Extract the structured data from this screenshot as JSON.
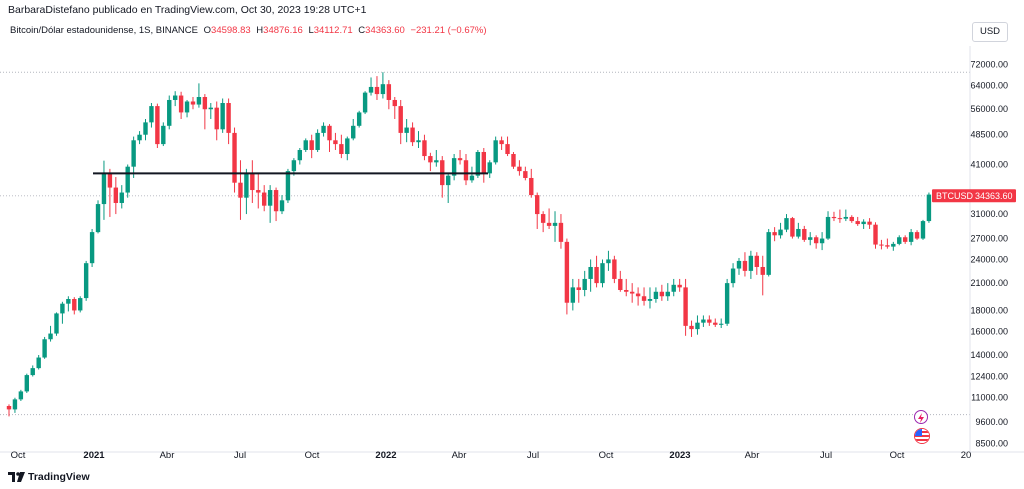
{
  "header": {
    "published": "BarbaraDistefano publicado en TradingView.com, Oct 30, 2023 19:28 UTC+1"
  },
  "legend": {
    "symbol": "Bitcoin/Dólar estadounidense, 1S, BINANCE",
    "o_label": "O",
    "o_value": "34598.83",
    "h_label": "H",
    "h_value": "34876.16",
    "l_label": "L",
    "l_value": "34112.71",
    "c_label": "C",
    "c_value": "34363.60",
    "change": "−231.21 (−0.67%)"
  },
  "currency_button": {
    "label": "USD"
  },
  "price_tag": {
    "ticker": "BTCUSD",
    "price": "34363.60"
  },
  "footer": {
    "brand": "TradingView"
  },
  "colors": {
    "up": "#089981",
    "down": "#f23645",
    "grid": "#e0e3eb",
    "text": "#131722"
  },
  "icons": [
    "lightning-event-icon",
    "us-flag-event-icon"
  ],
  "chart_data": {
    "type": "candlestick",
    "symbol": "BTCUSD",
    "interval": "1W",
    "y_scale": "log",
    "ylim": [
      8100,
      80000
    ],
    "y_ticks": [
      72000,
      64000,
      56000,
      48500,
      41000,
      31000,
      27000,
      24000,
      21000,
      18000,
      16000,
      14000,
      12400,
      11000,
      9600,
      8500
    ],
    "x_labels": [
      "Oct",
      "2021",
      "Abr",
      "Jul",
      "Oct",
      "2022",
      "Abr",
      "Jul",
      "Oct",
      "2023",
      "Abr",
      "Jul",
      "Oct",
      "20"
    ],
    "dotted_level_top": 69000,
    "dotted_level_bottom": 10000,
    "current_price": 34363.6,
    "annotations": [
      {
        "type": "horizontal_segment",
        "price": 39000,
        "from": "2020-12-14",
        "to": "2022-04-11"
      }
    ],
    "candles": [
      [
        10500,
        10600,
        9900,
        10300
      ],
      [
        10300,
        11000,
        10100,
        10900
      ],
      [
        10900,
        11500,
        10800,
        11400
      ],
      [
        11400,
        12600,
        11300,
        12500
      ],
      [
        12500,
        13200,
        12400,
        13000
      ],
      [
        13000,
        14000,
        12900,
        13800
      ],
      [
        13800,
        15500,
        13700,
        15300
      ],
      [
        15300,
        16500,
        15100,
        15800
      ],
      [
        15800,
        17800,
        15600,
        17700
      ],
      [
        17700,
        18900,
        16700,
        18700
      ],
      [
        18700,
        19500,
        17900,
        19200
      ],
      [
        19200,
        19400,
        17600,
        18000
      ],
      [
        18000,
        19500,
        17800,
        19300
      ],
      [
        19300,
        23800,
        19000,
        23500
      ],
      [
        23500,
        28500,
        23000,
        28000
      ],
      [
        28000,
        33500,
        27800,
        32800
      ],
      [
        32800,
        41900,
        30000,
        39000
      ],
      [
        39000,
        40000,
        30500,
        36000
      ],
      [
        36000,
        38200,
        31000,
        33000
      ],
      [
        33000,
        36500,
        32000,
        35000
      ],
      [
        35000,
        41000,
        34000,
        40500
      ],
      [
        40500,
        48000,
        38000,
        47000
      ],
      [
        47000,
        49500,
        46000,
        48500
      ],
      [
        48500,
        53000,
        47000,
        52000
      ],
      [
        52000,
        58000,
        50500,
        57000
      ],
      [
        57000,
        57800,
        45000,
        46000
      ],
      [
        46000,
        52000,
        45500,
        51000
      ],
      [
        51000,
        60500,
        50000,
        59000
      ],
      [
        59000,
        62000,
        57000,
        60500
      ],
      [
        60500,
        61800,
        53000,
        55000
      ],
      [
        55000,
        59000,
        53500,
        58500
      ],
      [
        58500,
        60000,
        56000,
        57500
      ],
      [
        57500,
        64800,
        56500,
        60000
      ],
      [
        60000,
        61000,
        50000,
        56000
      ],
      [
        56000,
        58000,
        53000,
        56500
      ],
      [
        56500,
        58500,
        47000,
        50000
      ],
      [
        50000,
        59500,
        49000,
        58000
      ],
      [
        58000,
        59500,
        46000,
        49000
      ],
      [
        49000,
        50500,
        35000,
        37000
      ],
      [
        37000,
        42000,
        30000,
        34000
      ],
      [
        34000,
        40000,
        31000,
        39000
      ],
      [
        39000,
        42000,
        33000,
        35500
      ],
      [
        35500,
        39000,
        32000,
        35000
      ],
      [
        35000,
        36500,
        31500,
        32500
      ],
      [
        32500,
        36500,
        29500,
        35500
      ],
      [
        35500,
        36000,
        29800,
        31500
      ],
      [
        31500,
        34500,
        31000,
        33500
      ],
      [
        33500,
        40000,
        33000,
        39500
      ],
      [
        39500,
        42500,
        38500,
        42000
      ],
      [
        42000,
        45000,
        41000,
        44500
      ],
      [
        44500,
        47500,
        44000,
        47000
      ],
      [
        47000,
        48500,
        42500,
        44500
      ],
      [
        44500,
        50000,
        44000,
        49000
      ],
      [
        49000,
        52000,
        48000,
        51000
      ],
      [
        51000,
        51500,
        44000,
        47000
      ],
      [
        47000,
        49000,
        44500,
        46000
      ],
      [
        46000,
        48500,
        42500,
        43500
      ],
      [
        43500,
        48000,
        42000,
        47500
      ],
      [
        47500,
        53000,
        47000,
        51000
      ],
      [
        51000,
        55500,
        50500,
        55000
      ],
      [
        55000,
        62000,
        54500,
        61500
      ],
      [
        61500,
        67000,
        60500,
        63500
      ],
      [
        63500,
        67500,
        59000,
        61000
      ],
      [
        61000,
        69000,
        59500,
        64500
      ],
      [
        64500,
        66000,
        56000,
        59000
      ],
      [
        59000,
        60000,
        53000,
        57000
      ],
      [
        57000,
        59000,
        46000,
        49000
      ],
      [
        49000,
        53000,
        46500,
        50500
      ],
      [
        50500,
        52000,
        45500,
        46500
      ],
      [
        46500,
        49500,
        45000,
        47000
      ],
      [
        47000,
        48500,
        42000,
        43000
      ],
      [
        43000,
        43800,
        39500,
        41500
      ],
      [
        41500,
        44500,
        40500,
        42000
      ],
      [
        42000,
        43000,
        34000,
        36500
      ],
      [
        36500,
        39000,
        33000,
        38500
      ],
      [
        38500,
        43500,
        37500,
        42500
      ],
      [
        42500,
        44500,
        41000,
        42000
      ],
      [
        42000,
        43500,
        36500,
        37500
      ],
      [
        37500,
        40500,
        37000,
        38500
      ],
      [
        38500,
        44500,
        38000,
        44000
      ],
      [
        44000,
        45000,
        37000,
        39000
      ],
      [
        39000,
        42000,
        38000,
        41500
      ],
      [
        41500,
        48000,
        41000,
        47000
      ],
      [
        47000,
        48000,
        44500,
        46000
      ],
      [
        46000,
        48000,
        43000,
        43500
      ],
      [
        43500,
        44000,
        40000,
        40500
      ],
      [
        40500,
        42000,
        38500,
        39500
      ],
      [
        39500,
        40500,
        37500,
        38000
      ],
      [
        38000,
        40000,
        34000,
        34500
      ],
      [
        34500,
        35000,
        28500,
        31000
      ],
      [
        31000,
        31500,
        28000,
        29500
      ],
      [
        29500,
        32000,
        28500,
        29000
      ],
      [
        29000,
        31500,
        26500,
        29500
      ],
      [
        29500,
        31000,
        25500,
        26500
      ],
      [
        26500,
        27000,
        17600,
        18800
      ],
      [
        18800,
        21500,
        18000,
        20500
      ],
      [
        20500,
        21500,
        18800,
        20200
      ],
      [
        20200,
        22500,
        19500,
        21500
      ],
      [
        21500,
        24000,
        20000,
        23000
      ],
      [
        23000,
        24500,
        20500,
        21000
      ],
      [
        21000,
        24000,
        20500,
        23500
      ],
      [
        23500,
        25200,
        22500,
        24000
      ],
      [
        24000,
        24500,
        21000,
        21500
      ],
      [
        21500,
        22500,
        20000,
        20200
      ],
      [
        20200,
        21500,
        19500,
        20000
      ],
      [
        20000,
        21000,
        18800,
        19800
      ],
      [
        19800,
        20500,
        18500,
        19500
      ],
      [
        19500,
        20500,
        18500,
        19000
      ],
      [
        19000,
        20500,
        18200,
        19200
      ],
      [
        19200,
        20500,
        18800,
        20000
      ],
      [
        20000,
        20800,
        19000,
        19500
      ],
      [
        19500,
        21000,
        19000,
        20000
      ],
      [
        20000,
        21500,
        19500,
        20800
      ],
      [
        20800,
        21500,
        20000,
        20500
      ],
      [
        20500,
        21500,
        15600,
        16500
      ],
      [
        16500,
        17000,
        15500,
        16200
      ],
      [
        16200,
        17500,
        15700,
        16800
      ],
      [
        16800,
        17500,
        16400,
        17100
      ],
      [
        17100,
        17500,
        16500,
        16800
      ],
      [
        16800,
        17200,
        16400,
        16600
      ],
      [
        16600,
        17200,
        16300,
        16700
      ],
      [
        16700,
        21500,
        16500,
        21000
      ],
      [
        21000,
        23500,
        20500,
        22800
      ],
      [
        22800,
        24200,
        22000,
        23800
      ],
      [
        23800,
        25000,
        21800,
        22500
      ],
      [
        22500,
        25200,
        21500,
        24500
      ],
      [
        24500,
        25000,
        22000,
        23000
      ],
      [
        23000,
        24500,
        19600,
        22000
      ],
      [
        22000,
        28500,
        21800,
        28000
      ],
      [
        28000,
        28800,
        26600,
        27500
      ],
      [
        27500,
        29500,
        27000,
        28400
      ],
      [
        28400,
        31000,
        28000,
        30300
      ],
      [
        30300,
        30500,
        27000,
        27300
      ],
      [
        27300,
        29500,
        27000,
        28500
      ],
      [
        28500,
        29000,
        26500,
        26800
      ],
      [
        26800,
        28000,
        26000,
        27200
      ],
      [
        27200,
        27500,
        25500,
        26300
      ],
      [
        26300,
        28000,
        25300,
        27000
      ],
      [
        27000,
        31500,
        26800,
        30500
      ],
      [
        30500,
        31400,
        29800,
        30300
      ],
      [
        30300,
        31800,
        29500,
        30200
      ],
      [
        30200,
        31800,
        29800,
        30500
      ],
      [
        30500,
        30800,
        29500,
        29800
      ],
      [
        29800,
        30500,
        29000,
        29300
      ],
      [
        29300,
        30100,
        28500,
        29700
      ],
      [
        29700,
        30300,
        28500,
        29200
      ],
      [
        29200,
        29600,
        25500,
        26100
      ],
      [
        26100,
        26800,
        25400,
        26000
      ],
      [
        26000,
        27000,
        25500,
        25800
      ],
      [
        25800,
        26500,
        25200,
        26200
      ],
      [
        26200,
        27500,
        26000,
        27200
      ],
      [
        27200,
        27500,
        26200,
        26500
      ],
      [
        26500,
        28500,
        26000,
        28000
      ],
      [
        28000,
        28300,
        26800,
        27000
      ],
      [
        27000,
        30000,
        26800,
        29800
      ],
      [
        29800,
        35000,
        29500,
        34600
      ],
      [
        34600,
        34900,
        34100,
        34364
      ]
    ]
  }
}
